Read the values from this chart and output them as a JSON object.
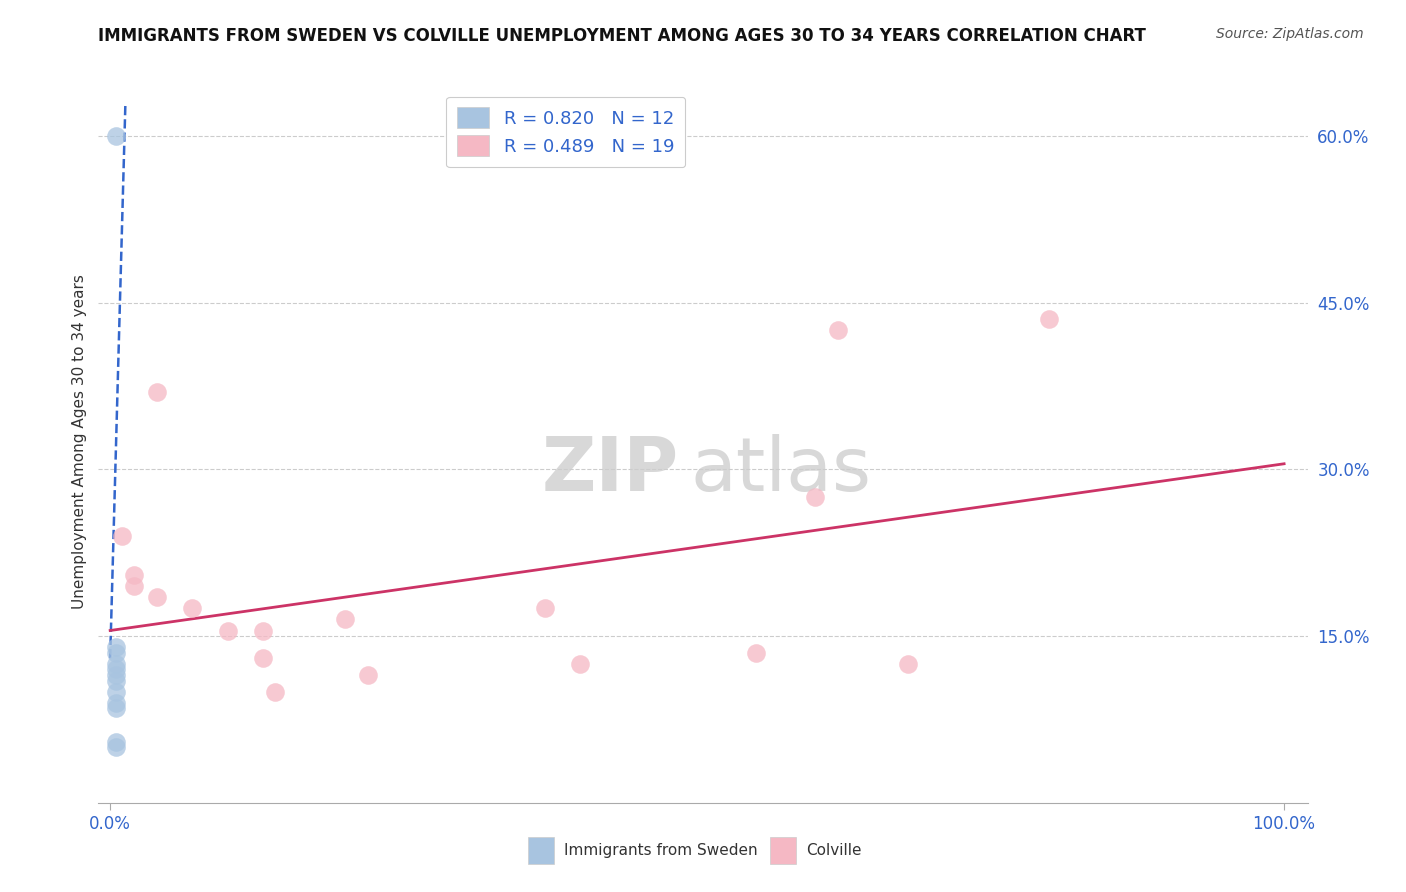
{
  "title": "IMMIGRANTS FROM SWEDEN VS COLVILLE UNEMPLOYMENT AMONG AGES 30 TO 34 YEARS CORRELATION CHART",
  "source": "Source: ZipAtlas.com",
  "ylabel": "Unemployment Among Ages 30 to 34 years",
  "watermark_1": "ZIP",
  "watermark_2": "atlas",
  "xlim": [
    0.0,
    1.0
  ],
  "ylim": [
    0.0,
    0.65
  ],
  "ytick_positions": [
    0.15,
    0.3,
    0.45,
    0.6
  ],
  "ytick_labels": [
    "15.0%",
    "30.0%",
    "45.0%",
    "60.0%"
  ],
  "grid_color": "#cccccc",
  "background_color": "#ffffff",
  "sweden_color": "#a8c4e0",
  "colville_color": "#f5b8c4",
  "sweden_line_color": "#3366cc",
  "colville_line_color": "#cc3366",
  "sweden_R": 0.82,
  "sweden_N": 12,
  "colville_R": 0.489,
  "colville_N": 19,
  "legend_R_color": "#3366cc",
  "sweden_points_x": [
    0.005,
    0.005,
    0.005,
    0.005,
    0.005,
    0.005,
    0.005,
    0.005,
    0.005,
    0.005,
    0.005,
    0.005
  ],
  "sweden_points_y": [
    0.6,
    0.14,
    0.135,
    0.125,
    0.12,
    0.115,
    0.11,
    0.1,
    0.09,
    0.085,
    0.055,
    0.05
  ],
  "colville_points_x": [
    0.04,
    0.01,
    0.02,
    0.02,
    0.04,
    0.07,
    0.1,
    0.13,
    0.13,
    0.14,
    0.2,
    0.22,
    0.37,
    0.4,
    0.55,
    0.6,
    0.62,
    0.68,
    0.8
  ],
  "colville_points_y": [
    0.37,
    0.24,
    0.205,
    0.195,
    0.185,
    0.175,
    0.155,
    0.155,
    0.13,
    0.1,
    0.165,
    0.115,
    0.175,
    0.125,
    0.135,
    0.275,
    0.425,
    0.125,
    0.435
  ],
  "sweden_trend_x": [
    0.0,
    0.013
  ],
  "sweden_trend_y": [
    0.13,
    0.63
  ],
  "colville_trend_x": [
    0.0,
    1.0
  ],
  "colville_trend_y": [
    0.155,
    0.305
  ]
}
